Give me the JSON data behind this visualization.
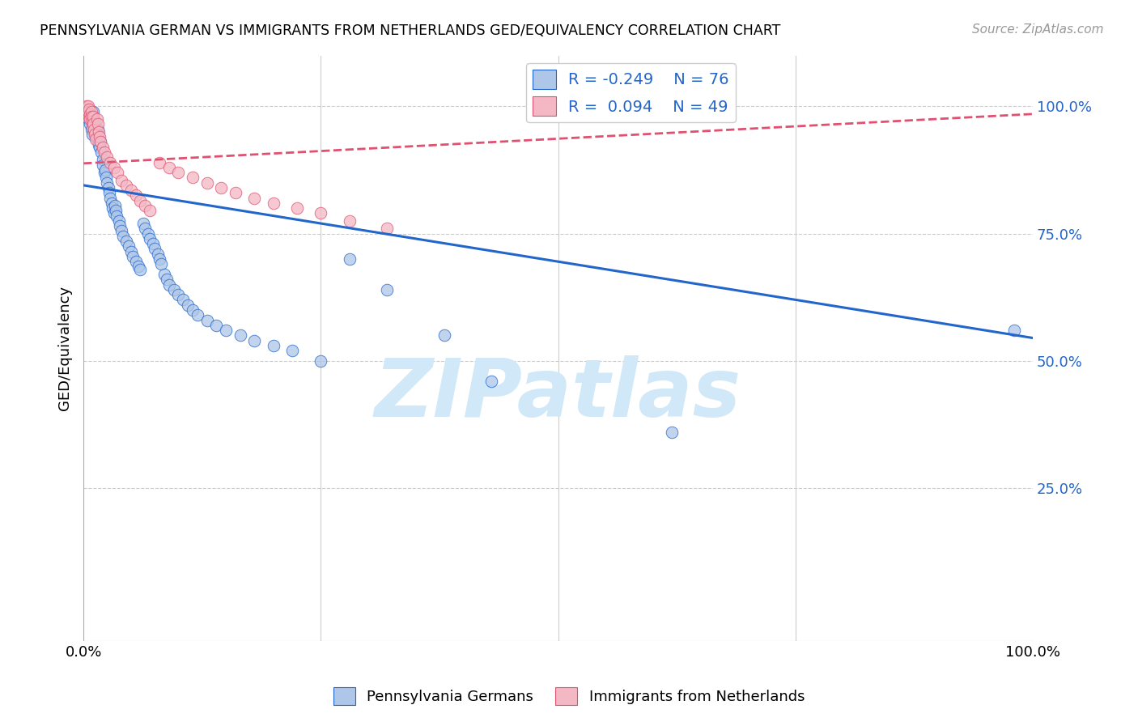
{
  "title": "PENNSYLVANIA GERMAN VS IMMIGRANTS FROM NETHERLANDS GED/EQUIVALENCY CORRELATION CHART",
  "source": "Source: ZipAtlas.com",
  "ylabel": "GED/Equivalency",
  "xlim": [
    0.0,
    1.0
  ],
  "ylim": [
    -0.05,
    1.1
  ],
  "blue_color": "#aec6e8",
  "pink_color": "#f4b8c4",
  "blue_line_color": "#2266cc",
  "pink_line_color": "#e05070",
  "watermark_color": "#d0e8f8",
  "blue_trend_y_start": 0.845,
  "blue_trend_y_end": 0.545,
  "pink_trend_y_start": 0.888,
  "pink_trend_y_end": 0.985,
  "background_color": "#ffffff",
  "grid_color": "#cccccc",
  "blue_scatter_x": [
    0.005,
    0.007,
    0.008,
    0.009,
    0.01,
    0.01,
    0.011,
    0.012,
    0.012,
    0.013,
    0.014,
    0.015,
    0.015,
    0.016,
    0.016,
    0.017,
    0.018,
    0.019,
    0.02,
    0.02,
    0.022,
    0.023,
    0.024,
    0.025,
    0.026,
    0.027,
    0.028,
    0.03,
    0.031,
    0.032,
    0.033,
    0.034,
    0.035,
    0.037,
    0.038,
    0.04,
    0.042,
    0.045,
    0.048,
    0.05,
    0.052,
    0.055,
    0.058,
    0.06,
    0.063,
    0.065,
    0.068,
    0.07,
    0.073,
    0.075,
    0.078,
    0.08,
    0.082,
    0.085,
    0.088,
    0.09,
    0.095,
    0.1,
    0.105,
    0.11,
    0.115,
    0.12,
    0.13,
    0.14,
    0.15,
    0.165,
    0.18,
    0.2,
    0.22,
    0.25,
    0.28,
    0.32,
    0.38,
    0.43,
    0.62,
    0.98
  ],
  "blue_scatter_y": [
    0.975,
    0.965,
    0.955,
    0.945,
    0.99,
    0.98,
    0.96,
    0.95,
    0.97,
    0.94,
    0.935,
    0.955,
    0.945,
    0.925,
    0.935,
    0.92,
    0.93,
    0.91,
    0.895,
    0.885,
    0.87,
    0.875,
    0.86,
    0.85,
    0.84,
    0.83,
    0.82,
    0.81,
    0.8,
    0.79,
    0.805,
    0.795,
    0.785,
    0.775,
    0.765,
    0.755,
    0.745,
    0.735,
    0.725,
    0.715,
    0.705,
    0.695,
    0.685,
    0.68,
    0.77,
    0.76,
    0.75,
    0.74,
    0.73,
    0.72,
    0.71,
    0.7,
    0.69,
    0.67,
    0.66,
    0.65,
    0.64,
    0.63,
    0.62,
    0.61,
    0.6,
    0.59,
    0.58,
    0.57,
    0.56,
    0.55,
    0.54,
    0.53,
    0.52,
    0.5,
    0.7,
    0.64,
    0.55,
    0.46,
    0.36,
    0.56
  ],
  "pink_scatter_x": [
    0.003,
    0.004,
    0.004,
    0.005,
    0.005,
    0.006,
    0.006,
    0.007,
    0.007,
    0.008,
    0.008,
    0.009,
    0.009,
    0.01,
    0.01,
    0.011,
    0.012,
    0.013,
    0.014,
    0.015,
    0.016,
    0.017,
    0.018,
    0.02,
    0.022,
    0.025,
    0.028,
    0.032,
    0.036,
    0.04,
    0.045,
    0.05,
    0.055,
    0.06,
    0.065,
    0.07,
    0.08,
    0.09,
    0.1,
    0.115,
    0.13,
    0.145,
    0.16,
    0.18,
    0.2,
    0.225,
    0.25,
    0.28,
    0.32
  ],
  "pink_scatter_y": [
    1.0,
    0.995,
    0.985,
    1.0,
    0.99,
    0.98,
    0.995,
    0.985,
    0.975,
    0.99,
    0.98,
    0.97,
    0.96,
    0.98,
    0.965,
    0.955,
    0.945,
    0.935,
    0.975,
    0.965,
    0.95,
    0.94,
    0.93,
    0.92,
    0.91,
    0.9,
    0.89,
    0.88,
    0.87,
    0.855,
    0.845,
    0.835,
    0.825,
    0.815,
    0.805,
    0.795,
    0.89,
    0.88,
    0.87,
    0.86,
    0.85,
    0.84,
    0.83,
    0.82,
    0.81,
    0.8,
    0.79,
    0.775,
    0.76
  ]
}
